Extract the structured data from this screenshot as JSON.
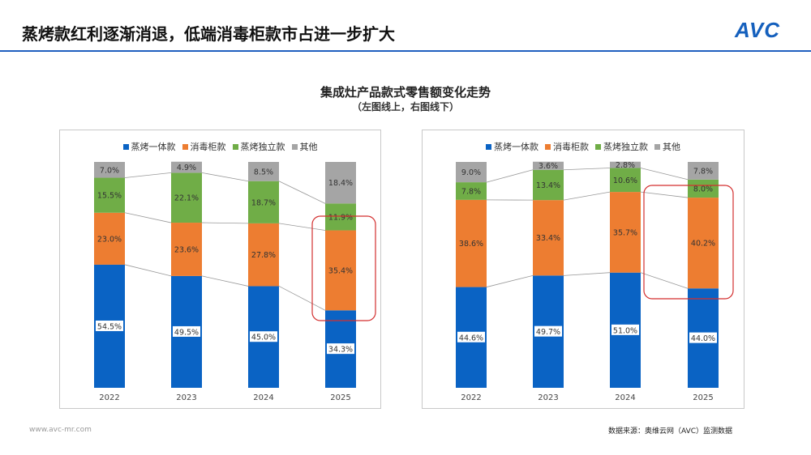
{
  "header": {
    "title": "蒸烤款红利逐渐消退，低端消毒柜款市占进一步扩大",
    "logo": "AVC"
  },
  "chart_title": "集成灶产品款式零售额变化走势",
  "chart_subtitle": "（左图线上，右图线下）",
  "footer": {
    "website": "www.avc-mr.com",
    "source": "数据来源：奥维云网（AVC）监测数据"
  },
  "colors": {
    "蒸烤一体款": "#0a63c4",
    "消毒柜款": "#ed7d31",
    "蒸烤独立款": "#70ad47",
    "其他": "#a5a5a5",
    "highlight": "#d32f2f",
    "accent": "#1f5fbf"
  },
  "chart_data": [
    {
      "type": "bar",
      "stacked": true,
      "percent": true,
      "title": "",
      "ylim": [
        0,
        100
      ],
      "categories": [
        "2022",
        "2023",
        "2024",
        "2025"
      ],
      "legend_position": "top",
      "series": [
        {
          "name": "蒸烤一体款",
          "values": [
            54.5,
            49.5,
            45.0,
            34.3
          ],
          "labels": [
            "54.5%",
            "49.5%",
            "45.0%",
            "34.3%"
          ]
        },
        {
          "name": "消毒柜款",
          "values": [
            23.0,
            23.6,
            27.8,
            35.4
          ],
          "labels": [
            "23.0%",
            "23.6%",
            "27.8%",
            "35.4%"
          ]
        },
        {
          "name": "蒸烤独立款",
          "values": [
            15.5,
            22.1,
            18.7,
            11.9
          ],
          "labels": [
            "15.5%",
            "22.1%",
            "18.7%",
            "11.9%"
          ]
        },
        {
          "name": "其他",
          "values": [
            7.0,
            4.9,
            8.5,
            18.4
          ],
          "labels": [
            "7.0%",
            "4.9%",
            "8.5%",
            "18.4%"
          ]
        }
      ],
      "highlight": "2025 消毒柜款"
    },
    {
      "type": "bar",
      "stacked": true,
      "percent": true,
      "title": "",
      "ylim": [
        0,
        100
      ],
      "categories": [
        "2022",
        "2023",
        "2024",
        "2025"
      ],
      "legend_position": "top",
      "series": [
        {
          "name": "蒸烤一体款",
          "values": [
            44.6,
            49.7,
            51.0,
            44.0
          ],
          "labels": [
            "44.6%",
            "49.7%",
            "51.0%",
            "44.0%"
          ]
        },
        {
          "name": "消毒柜款",
          "values": [
            38.6,
            33.4,
            35.7,
            40.2
          ],
          "labels": [
            "38.6%",
            "33.4%",
            "35.7%",
            "40.2%"
          ]
        },
        {
          "name": "蒸烤独立款",
          "values": [
            7.8,
            13.4,
            10.6,
            8.0
          ],
          "labels": [
            "7.8%",
            "13.4%",
            "10.6%",
            "8.0%"
          ]
        },
        {
          "name": "其他",
          "values": [
            9.0,
            3.6,
            2.8,
            7.8
          ],
          "labels": [
            "9.0%",
            "3.6%",
            "2.8%",
            "7.8%"
          ]
        }
      ],
      "highlight": "2025 消毒柜款"
    }
  ]
}
